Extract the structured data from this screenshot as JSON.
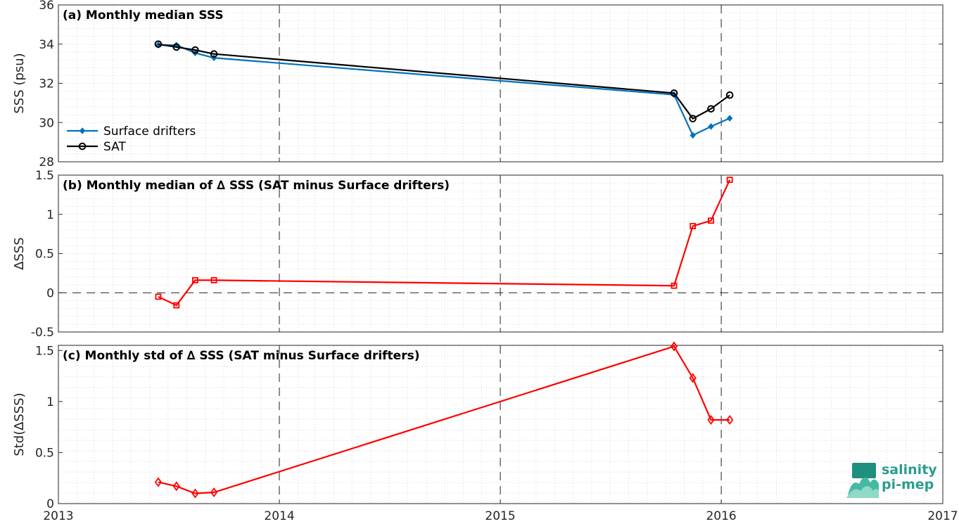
{
  "chart_data": [
    {
      "type": "line",
      "title": "(a) Monthly median SSS",
      "xlabel": "",
      "ylabel": "SSS (psu)",
      "xlim": [
        "2013-01-01",
        "2017-01-01"
      ],
      "ylim": [
        28,
        36
      ],
      "x_ticks": [
        "2013",
        "2014",
        "2015",
        "2016",
        "2017"
      ],
      "y_ticks": [
        "28",
        "30",
        "32",
        "34",
        "36"
      ],
      "grid": true,
      "legend": "lower-left",
      "x": [
        "2013-06-15",
        "2013-07-15",
        "2013-08-15",
        "2013-09-15",
        "2015-10-15",
        "2015-11-15",
        "2015-12-15",
        "2016-01-15"
      ],
      "series": [
        {
          "name": "Surface drifters",
          "color": "#0072bd",
          "marker": "diamond-filled",
          "values": [
            33.95,
            33.95,
            33.55,
            33.3,
            31.42,
            29.35,
            29.8,
            30.22
          ]
        },
        {
          "name": "SAT",
          "color": "#000000",
          "marker": "circle",
          "values": [
            34.0,
            33.85,
            33.7,
            33.5,
            31.5,
            30.2,
            30.7,
            31.4
          ]
        }
      ]
    },
    {
      "type": "line",
      "title": "(b) Monthly median of ∆ SSS (SAT minus Surface drifters)",
      "xlabel": "",
      "ylabel": "∆SSS",
      "xlim": [
        "2013-01-01",
        "2017-01-01"
      ],
      "ylim": [
        -0.5,
        1.5
      ],
      "x_ticks": [
        "2013",
        "2014",
        "2015",
        "2016",
        "2017"
      ],
      "y_ticks": [
        "-0.5",
        "0",
        "0.5",
        "1",
        "1.5"
      ],
      "grid": true,
      "zero_line": true,
      "x": [
        "2013-06-15",
        "2013-07-15",
        "2013-08-15",
        "2013-09-15",
        "2015-10-15",
        "2015-11-15",
        "2015-12-15",
        "2016-01-15"
      ],
      "series": [
        {
          "color": "#ff0000",
          "marker": "square",
          "values": [
            -0.05,
            -0.16,
            0.16,
            0.16,
            0.09,
            0.85,
            0.92,
            1.44
          ]
        }
      ]
    },
    {
      "type": "line",
      "title": "(c) Monthly std of ∆ SSS (SAT minus Surface drifters)",
      "xlabel": "",
      "ylabel": "Std(∆SSS)",
      "xlim": [
        "2013-01-01",
        "2017-01-01"
      ],
      "ylim": [
        0,
        1.55
      ],
      "x_ticks": [
        "2013",
        "2014",
        "2015",
        "2016",
        "2017"
      ],
      "y_ticks": [
        "0",
        "0.5",
        "1",
        "1.5"
      ],
      "grid": true,
      "x": [
        "2013-06-15",
        "2013-07-15",
        "2013-08-15",
        "2013-09-15",
        "2015-10-15",
        "2015-11-15",
        "2015-12-15",
        "2016-01-15"
      ],
      "series": [
        {
          "color": "#ff0000",
          "marker": "diamond",
          "values": [
            0.21,
            0.17,
            0.1,
            0.11,
            1.54,
            1.23,
            0.82,
            0.82
          ]
        }
      ]
    }
  ],
  "logo": {
    "line1": "salinity",
    "line2": "pi-mep"
  }
}
